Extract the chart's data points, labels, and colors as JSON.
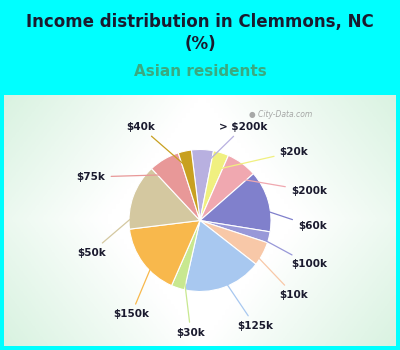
{
  "title": "Income distribution in Clemmons, NC\n(%)",
  "subtitle": "Asian residents",
  "background_color": "#00FFFF",
  "slices": [
    {
      "label": "> $200k",
      "value": 5.0,
      "color": "#b8b0e0"
    },
    {
      "label": "$20k",
      "value": 3.5,
      "color": "#f0f080"
    },
    {
      "label": "$200k",
      "value": 7.0,
      "color": "#f0a8b0"
    },
    {
      "label": "$60k",
      "value": 14.0,
      "color": "#8080cc"
    },
    {
      "label": "$100k",
      "value": 2.5,
      "color": "#9898d8"
    },
    {
      "label": "$10k",
      "value": 5.5,
      "color": "#f8c8a8"
    },
    {
      "label": "$125k",
      "value": 18.0,
      "color": "#a8c8f0"
    },
    {
      "label": "$30k",
      "value": 3.0,
      "color": "#c8e890"
    },
    {
      "label": "$150k",
      "value": 16.5,
      "color": "#f8b84c"
    },
    {
      "label": "$50k",
      "value": 15.0,
      "color": "#d4c8a0"
    },
    {
      "label": "$75k",
      "value": 7.0,
      "color": "#e89898"
    },
    {
      "label": "$40k",
      "value": 3.0,
      "color": "#c8a020"
    }
  ],
  "label_color": "#1a1a2e",
  "title_color": "#1a1a2e",
  "subtitle_color": "#3aaa80",
  "title_fontsize": 12,
  "subtitle_fontsize": 11,
  "label_fontsize": 7.5
}
